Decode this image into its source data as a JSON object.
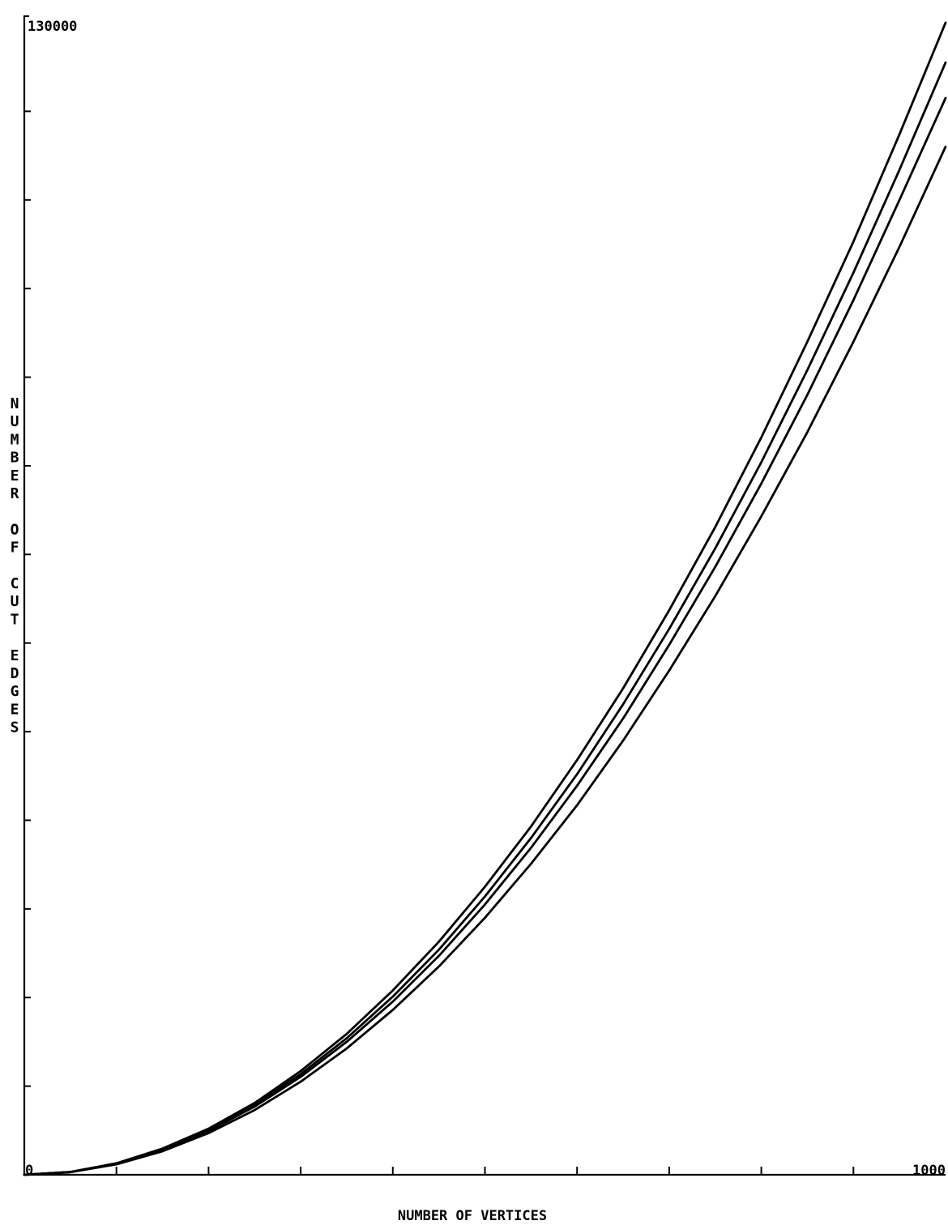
{
  "chart_data": {
    "type": "line",
    "title": "",
    "xlabel": "NUMBER OF VERTICES",
    "ylabel": "NUMBER OF CUT EDGES",
    "xlim": [
      0,
      1000
    ],
    "ylim": [
      0,
      130000
    ],
    "x_tick_labels": [
      "0",
      "1000"
    ],
    "y_tick_labels": [
      "130000"
    ],
    "x_minor_ticks": 10,
    "y_minor_ticks": 13,
    "grid": false,
    "legend": "none",
    "x": [
      0,
      50,
      100,
      150,
      200,
      250,
      300,
      350,
      400,
      450,
      500,
      550,
      600,
      650,
      700,
      750,
      800,
      850,
      900,
      950,
      1000
    ],
    "series": [
      {
        "values": [
          0,
          320,
          1300,
          2950,
          5200,
          8100,
          11700,
          15900,
          20800,
          26300,
          32500,
          39300,
          46800,
          54900,
          63700,
          73100,
          83200,
          94000,
          105300,
          117400,
          130000
        ]
      },
      {
        "values": [
          0,
          310,
          1260,
          2850,
          5050,
          7900,
          11350,
          15400,
          20100,
          25400,
          31400,
          38000,
          45200,
          53100,
          61600,
          70700,
          80400,
          90800,
          101800,
          113400,
          125500
        ]
      },
      {
        "values": [
          0,
          300,
          1230,
          2780,
          4920,
          7700,
          11050,
          15000,
          19550,
          24700,
          30500,
          36900,
          43900,
          51500,
          59800,
          68600,
          78000,
          88000,
          98700,
          110000,
          121500
        ]
      },
      {
        "values": [
          0,
          290,
          1180,
          2650,
          4700,
          7300,
          10500,
          14250,
          18600,
          23500,
          29000,
          35100,
          41700,
          49000,
          56900,
          65300,
          74300,
          83800,
          94000,
          104700,
          116000
        ]
      }
    ]
  }
}
